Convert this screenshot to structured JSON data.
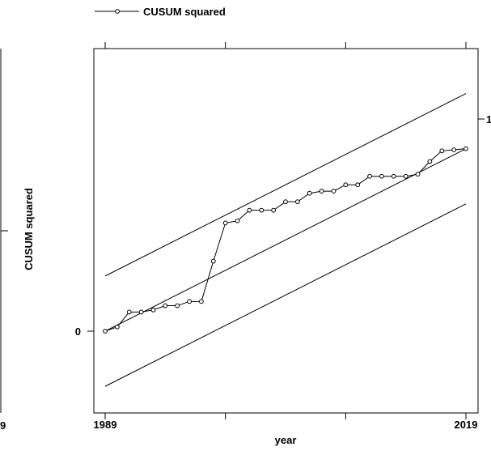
{
  "chart_data": {
    "type": "line",
    "xlabel": "year",
    "ylabel": "CUSUM squared",
    "x_range": [
      1989,
      2019
    ],
    "y_range": [
      -0.26,
      1.1
    ],
    "x_ticks": [
      1989,
      2019
    ],
    "y_ticks": [
      0,
      1
    ],
    "legend": {
      "placement": "top-left",
      "entries": [
        "CUSUM squared"
      ]
    },
    "series": [
      {
        "name": "CUSUM squared",
        "marker": "open-circle",
        "x": [
          1989,
          1990,
          1991,
          1992,
          1993,
          1994,
          1995,
          1996,
          1997,
          1998,
          1999,
          2000,
          2001,
          2002,
          2003,
          2004,
          2005,
          2006,
          2007,
          2008,
          2009,
          2010,
          2011,
          2012,
          2013,
          2014,
          2015,
          2016,
          2017,
          2018,
          2019
        ],
        "y": [
          0.0,
          0.02,
          0.09,
          0.09,
          0.1,
          0.12,
          0.12,
          0.14,
          0.14,
          0.33,
          0.51,
          0.52,
          0.57,
          0.57,
          0.57,
          0.61,
          0.61,
          0.65,
          0.66,
          0.66,
          0.69,
          0.69,
          0.73,
          0.73,
          0.73,
          0.73,
          0.74,
          0.8,
          0.85,
          0.855,
          0.86
        ]
      }
    ],
    "reference_lines": [
      {
        "role": "expected",
        "x": [
          1989,
          2019
        ],
        "y": [
          0.0,
          0.86
        ]
      },
      {
        "role": "upper-bound",
        "x": [
          1989,
          2019
        ],
        "y": [
          0.26,
          1.12
        ]
      },
      {
        "role": "lower-bound",
        "x": [
          1989,
          2019
        ],
        "y": [
          -0.26,
          0.6
        ]
      }
    ],
    "grid": false
  },
  "left_panel_fragment": {
    "tick_label": "9"
  }
}
